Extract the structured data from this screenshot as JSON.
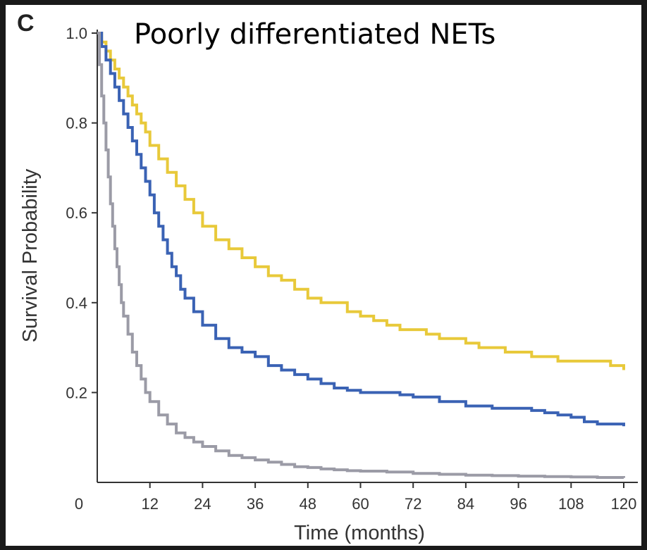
{
  "chart_data": {
    "type": "line",
    "panel_label": "C",
    "title": "Poorly differentiated NETs",
    "xlabel": "Time (months)",
    "ylabel": "Survival Probability",
    "xlim": [
      0,
      120
    ],
    "ylim": [
      0,
      1.0
    ],
    "x_ticks": [
      0,
      12,
      24,
      36,
      48,
      60,
      72,
      84,
      96,
      108,
      120
    ],
    "y_ticks": [
      0.2,
      0.4,
      0.6,
      0.8,
      1.0
    ],
    "x_tick_labels": [
      "0",
      "12",
      "24",
      "36",
      "48",
      "60",
      "72",
      "84",
      "96",
      "108",
      "120"
    ],
    "y_tick_labels": [
      "0.2",
      "0.4",
      "0.6",
      "0.8",
      "1.0"
    ],
    "legend": "none",
    "grid": false,
    "step": true,
    "series": [
      {
        "color": "#e8c93a",
        "points": [
          [
            0,
            1.0
          ],
          [
            1,
            0.98
          ],
          [
            2,
            0.96
          ],
          [
            3,
            0.94
          ],
          [
            4,
            0.92
          ],
          [
            5,
            0.9
          ],
          [
            6,
            0.88
          ],
          [
            7,
            0.86
          ],
          [
            8,
            0.84
          ],
          [
            9,
            0.82
          ],
          [
            10,
            0.8
          ],
          [
            11,
            0.78
          ],
          [
            12,
            0.75
          ],
          [
            14,
            0.72
          ],
          [
            16,
            0.69
          ],
          [
            18,
            0.66
          ],
          [
            20,
            0.63
          ],
          [
            22,
            0.6
          ],
          [
            24,
            0.57
          ],
          [
            27,
            0.54
          ],
          [
            30,
            0.52
          ],
          [
            33,
            0.5
          ],
          [
            36,
            0.48
          ],
          [
            39,
            0.46
          ],
          [
            42,
            0.45
          ],
          [
            45,
            0.43
          ],
          [
            48,
            0.41
          ],
          [
            51,
            0.4
          ],
          [
            54,
            0.4
          ],
          [
            57,
            0.38
          ],
          [
            60,
            0.37
          ],
          [
            63,
            0.36
          ],
          [
            66,
            0.35
          ],
          [
            69,
            0.34
          ],
          [
            72,
            0.34
          ],
          [
            75,
            0.33
          ],
          [
            78,
            0.32
          ],
          [
            81,
            0.32
          ],
          [
            84,
            0.31
          ],
          [
            87,
            0.3
          ],
          [
            90,
            0.3
          ],
          [
            93,
            0.29
          ],
          [
            96,
            0.29
          ],
          [
            99,
            0.28
          ],
          [
            102,
            0.28
          ],
          [
            105,
            0.27
          ],
          [
            108,
            0.27
          ],
          [
            111,
            0.27
          ],
          [
            114,
            0.27
          ],
          [
            117,
            0.26
          ],
          [
            120,
            0.25
          ]
        ]
      },
      {
        "color": "#3a62b4",
        "points": [
          [
            0,
            1.0
          ],
          [
            1,
            0.97
          ],
          [
            2,
            0.94
          ],
          [
            3,
            0.91
          ],
          [
            4,
            0.88
          ],
          [
            5,
            0.85
          ],
          [
            6,
            0.82
          ],
          [
            7,
            0.79
          ],
          [
            8,
            0.76
          ],
          [
            9,
            0.73
          ],
          [
            10,
            0.7
          ],
          [
            11,
            0.67
          ],
          [
            12,
            0.64
          ],
          [
            13,
            0.6
          ],
          [
            14,
            0.57
          ],
          [
            15,
            0.54
          ],
          [
            16,
            0.51
          ],
          [
            17,
            0.48
          ],
          [
            18,
            0.46
          ],
          [
            19,
            0.43
          ],
          [
            20,
            0.41
          ],
          [
            22,
            0.38
          ],
          [
            24,
            0.35
          ],
          [
            27,
            0.32
          ],
          [
            30,
            0.3
          ],
          [
            33,
            0.29
          ],
          [
            36,
            0.28
          ],
          [
            39,
            0.26
          ],
          [
            42,
            0.25
          ],
          [
            45,
            0.24
          ],
          [
            48,
            0.23
          ],
          [
            51,
            0.22
          ],
          [
            54,
            0.21
          ],
          [
            57,
            0.205
          ],
          [
            60,
            0.2
          ],
          [
            66,
            0.2
          ],
          [
            69,
            0.195
          ],
          [
            72,
            0.19
          ],
          [
            78,
            0.18
          ],
          [
            84,
            0.17
          ],
          [
            90,
            0.165
          ],
          [
            96,
            0.165
          ],
          [
            99,
            0.16
          ],
          [
            102,
            0.155
          ],
          [
            105,
            0.15
          ],
          [
            108,
            0.145
          ],
          [
            111,
            0.135
          ],
          [
            114,
            0.13
          ],
          [
            120,
            0.125
          ]
        ]
      },
      {
        "color": "#9b9ba6",
        "points": [
          [
            0,
            1.0
          ],
          [
            0.5,
            0.93
          ],
          [
            1,
            0.86
          ],
          [
            1.5,
            0.8
          ],
          [
            2,
            0.74
          ],
          [
            2.5,
            0.68
          ],
          [
            3,
            0.62
          ],
          [
            3.5,
            0.57
          ],
          [
            4,
            0.52
          ],
          [
            4.5,
            0.48
          ],
          [
            5,
            0.44
          ],
          [
            5.5,
            0.4
          ],
          [
            6,
            0.37
          ],
          [
            7,
            0.33
          ],
          [
            8,
            0.29
          ],
          [
            9,
            0.26
          ],
          [
            10,
            0.23
          ],
          [
            11,
            0.2
          ],
          [
            12,
            0.18
          ],
          [
            14,
            0.15
          ],
          [
            16,
            0.13
          ],
          [
            18,
            0.11
          ],
          [
            20,
            0.1
          ],
          [
            22,
            0.09
          ],
          [
            24,
            0.08
          ],
          [
            27,
            0.07
          ],
          [
            30,
            0.06
          ],
          [
            33,
            0.055
          ],
          [
            36,
            0.05
          ],
          [
            39,
            0.045
          ],
          [
            42,
            0.04
          ],
          [
            45,
            0.035
          ],
          [
            48,
            0.033
          ],
          [
            51,
            0.03
          ],
          [
            54,
            0.028
          ],
          [
            57,
            0.026
          ],
          [
            60,
            0.025
          ],
          [
            66,
            0.023
          ],
          [
            72,
            0.02
          ],
          [
            78,
            0.018
          ],
          [
            84,
            0.016
          ],
          [
            90,
            0.015
          ],
          [
            96,
            0.014
          ],
          [
            102,
            0.013
          ],
          [
            108,
            0.012
          ],
          [
            114,
            0.011
          ],
          [
            120,
            0.01
          ]
        ]
      }
    ]
  }
}
